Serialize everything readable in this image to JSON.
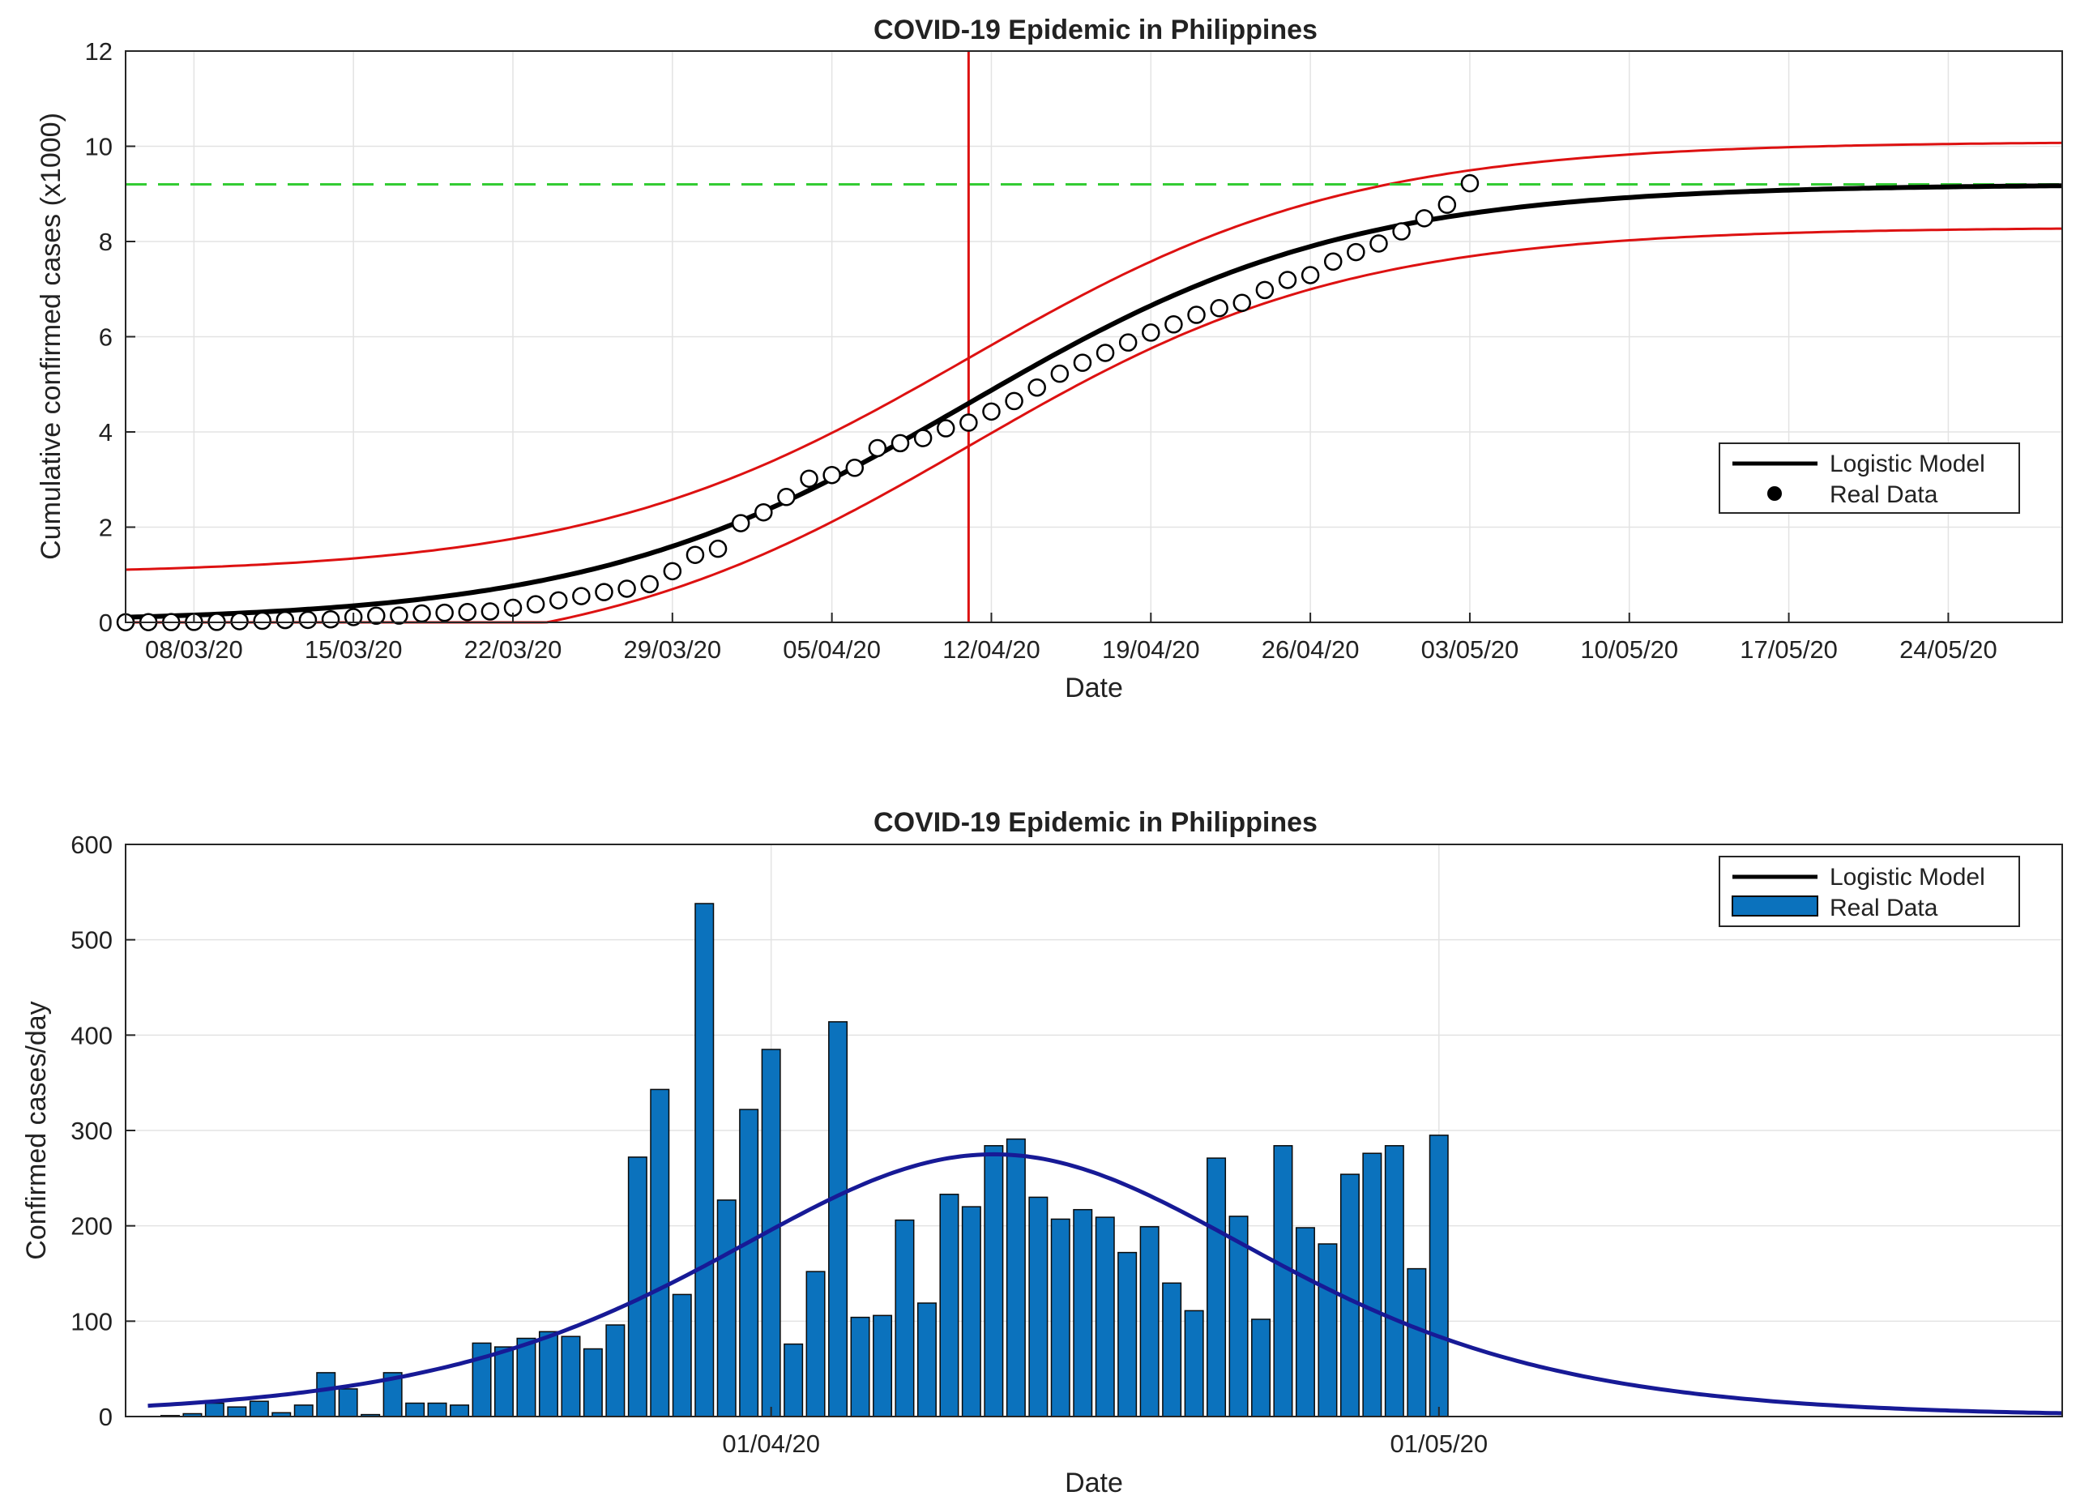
{
  "chart_data": [
    {
      "type": "scatter",
      "title": "COVID-19 Epidemic in Philippines",
      "xlabel": "Date",
      "ylabel": "Cumulative confirmed cases (x1000)",
      "xaxis_type": "date",
      "xlim": [
        "2020-03-05",
        "2020-05-29"
      ],
      "ylim": [
        0,
        12
      ],
      "yticks": [
        0,
        2,
        4,
        6,
        8,
        10,
        12
      ],
      "xticks": [
        {
          "date": "2020-03-08",
          "label": "08/03/20"
        },
        {
          "date": "2020-03-15",
          "label": "15/03/20"
        },
        {
          "date": "2020-03-22",
          "label": "22/03/20"
        },
        {
          "date": "2020-03-29",
          "label": "29/03/20"
        },
        {
          "date": "2020-04-05",
          "label": "05/04/20"
        },
        {
          "date": "2020-04-12",
          "label": "12/04/20"
        },
        {
          "date": "2020-04-19",
          "label": "19/04/20"
        },
        {
          "date": "2020-04-26",
          "label": "26/04/20"
        },
        {
          "date": "2020-05-03",
          "label": "03/05/20"
        },
        {
          "date": "2020-05-10",
          "label": "10/05/20"
        },
        {
          "date": "2020-05-17",
          "label": "17/05/20"
        },
        {
          "date": "2020-05-24",
          "label": "24/05/20"
        }
      ],
      "grid": true,
      "legend": {
        "placement": "right",
        "entries": [
          "Logistic Model",
          "Real Data"
        ]
      },
      "series": [
        {
          "name": "Real Data",
          "style": "open-circle",
          "x": [
            "2020-03-05",
            "2020-03-06",
            "2020-03-07",
            "2020-03-08",
            "2020-03-09",
            "2020-03-10",
            "2020-03-11",
            "2020-03-12",
            "2020-03-13",
            "2020-03-14",
            "2020-03-15",
            "2020-03-16",
            "2020-03-17",
            "2020-03-18",
            "2020-03-19",
            "2020-03-20",
            "2020-03-21",
            "2020-03-22",
            "2020-03-23",
            "2020-03-24",
            "2020-03-25",
            "2020-03-26",
            "2020-03-27",
            "2020-03-28",
            "2020-03-29",
            "2020-03-30",
            "2020-03-31",
            "2020-04-01",
            "2020-04-02",
            "2020-04-03",
            "2020-04-04",
            "2020-04-05",
            "2020-04-06",
            "2020-04-07",
            "2020-04-08",
            "2020-04-09",
            "2020-04-10",
            "2020-04-11",
            "2020-04-12",
            "2020-04-13",
            "2020-04-14",
            "2020-04-15",
            "2020-04-16",
            "2020-04-17",
            "2020-04-18",
            "2020-04-19",
            "2020-04-20",
            "2020-04-21",
            "2020-04-22",
            "2020-04-23",
            "2020-04-24",
            "2020-04-25",
            "2020-04-26",
            "2020-04-27",
            "2020-04-28",
            "2020-04-29",
            "2020-04-30",
            "2020-05-01",
            "2020-05-02",
            "2020-05-03"
          ],
          "y": [
            0.003,
            0.005,
            0.006,
            0.01,
            0.01,
            0.024,
            0.033,
            0.049,
            0.052,
            0.064,
            0.111,
            0.14,
            0.142,
            0.187,
            0.202,
            0.217,
            0.23,
            0.307,
            0.38,
            0.462,
            0.552,
            0.636,
            0.707,
            0.803,
            1.075,
            1.418,
            1.546,
            2.084,
            2.311,
            2.633,
            3.018,
            3.094,
            3.246,
            3.66,
            3.764,
            3.87,
            4.076,
            4.195,
            4.428,
            4.648,
            4.932,
            5.223,
            5.453,
            5.66,
            5.878,
            6.087,
            6.259,
            6.459,
            6.599,
            6.71,
            6.981,
            7.192,
            7.294,
            7.579,
            7.777,
            7.958,
            8.212,
            8.488,
            8.772,
            9.223
          ]
        },
        {
          "name": "Logistic Model",
          "style": "line",
          "K": 9.2,
          "peak_date": "2020-04-11",
          "rate": 0.12
        },
        {
          "style": "line",
          "K": 10.1,
          "lower_floor": 1.0,
          "peak_date": "2020-04-11",
          "rate": 0.12
        },
        {
          "style": "line",
          "K": 8.3,
          "lower_floor": -0.9,
          "peak_date": "2020-04-11",
          "rate": 0.12
        }
      ],
      "reference_lines": [
        {
          "orientation": "horizontal",
          "value": 9.2,
          "color": "#33cc33",
          "style": "dashed"
        },
        {
          "orientation": "vertical",
          "value": "2020-04-11",
          "color": "#dd1111",
          "style": "solid"
        }
      ],
      "colors": {
        "model": "#000000",
        "bounds": "#dd1111",
        "points": "#000000",
        "grid": "#e3e3e3"
      }
    },
    {
      "type": "bar",
      "title": "COVID-19 Epidemic in Philippines",
      "xlabel": "Date",
      "ylabel": "Confirmed cases/day",
      "xaxis_type": "date",
      "xlim": [
        "2020-03-03",
        "2020-05-29"
      ],
      "ylim": [
        0,
        600
      ],
      "yticks": [
        0,
        100,
        200,
        300,
        400,
        500,
        600
      ],
      "xticks": [
        {
          "date": "2020-04-01",
          "label": "01/04/20"
        },
        {
          "date": "2020-05-01",
          "label": "01/05/20"
        }
      ],
      "grid": true,
      "legend": {
        "placement": "top-right",
        "entries": [
          "Logistic Model",
          "Real Data"
        ]
      },
      "series": [
        {
          "name": "Real Data",
          "style": "bar",
          "start_date": "2020-03-05",
          "values": [
            1,
            3,
            14,
            10,
            16,
            4,
            12,
            46,
            29,
            2,
            46,
            14,
            14,
            12,
            77,
            73,
            82,
            89,
            84,
            71,
            96,
            272,
            343,
            128,
            538,
            227,
            322,
            385,
            76,
            152,
            414,
            104,
            106,
            206,
            119,
            233,
            220,
            284,
            291,
            230,
            207,
            217,
            209,
            172,
            199,
            140,
            111,
            271,
            210,
            102,
            284,
            198,
            181,
            254,
            276,
            284,
            155,
            295
          ]
        },
        {
          "name": "Logistic Model",
          "style": "line",
          "peak_value": 275,
          "peak_date": "2020-04-11",
          "rate": 0.12
        }
      ],
      "colors": {
        "bars": "#0b72bd",
        "bar_edge": "#0a0a0a",
        "model": "#171a96",
        "grid": "#e3e3e3"
      }
    }
  ]
}
